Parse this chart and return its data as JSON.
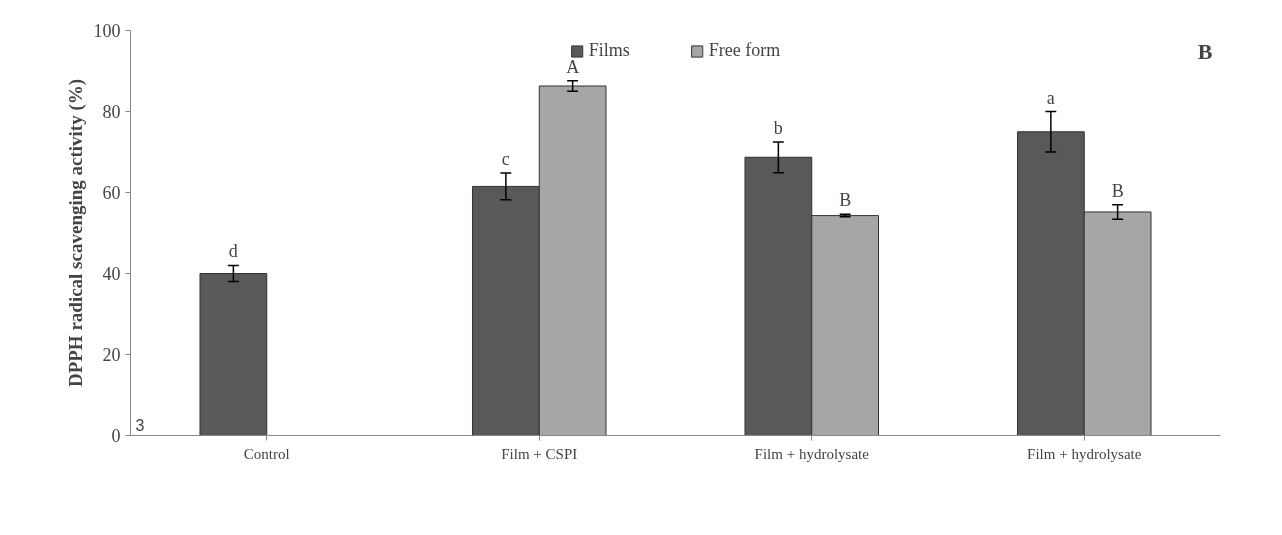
{
  "chart_data": {
    "type": "bar",
    "ylabel": "DPPH radical scavenging activity (%)",
    "categories": [
      "Control",
      "Film + CSPI",
      "Film + hydrolysate",
      "Film + hydrolysate"
    ],
    "series": [
      {
        "name": "Films",
        "color": "#595959",
        "values": [
          40,
          61.5,
          68.7,
          75
        ],
        "errors": [
          2,
          3.3,
          3.8,
          5
        ],
        "value_labels": [
          "d",
          "c",
          "b",
          "a"
        ]
      },
      {
        "name": "Free form",
        "color": "#a6a6a6",
        "values": [
          null,
          86.3,
          54.3,
          55.2
        ],
        "errors": [
          null,
          1.3,
          0.3,
          1.8
        ],
        "value_labels": [
          null,
          "A",
          "B",
          "B"
        ]
      }
    ],
    "ylim": [
      0,
      100
    ],
    "yticks": [
      0,
      20,
      40,
      60,
      80,
      100
    ],
    "grid": false,
    "legend": "top",
    "annotations": [
      "B",
      "3"
    ]
  }
}
